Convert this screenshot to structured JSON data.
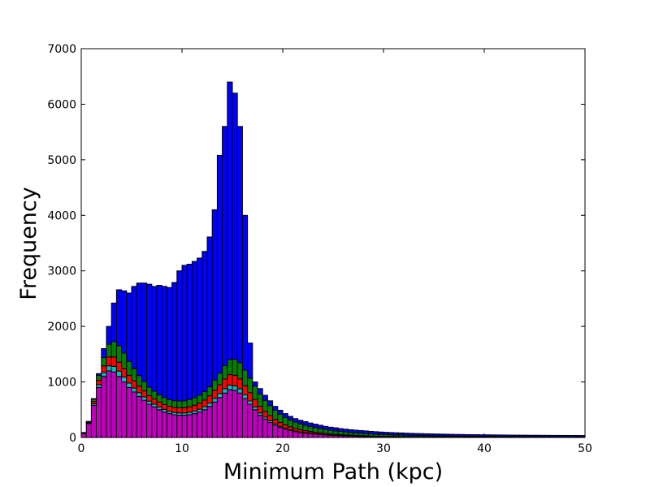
{
  "chart_data": {
    "type": "histogram",
    "xlabel": "Minimum Path (kpc)",
    "ylabel": "Frequency",
    "stacked": true,
    "bins": [
      0,
      0.5,
      1,
      1.5,
      2,
      2.5,
      3,
      3.5,
      4,
      4.5,
      5,
      5.5,
      6,
      6.5,
      7,
      7.5,
      8,
      8.5,
      9,
      9.5,
      10,
      10.5,
      11,
      11.5,
      12,
      12.5,
      13,
      13.5,
      14,
      14.5,
      15,
      15.5,
      16,
      16.5,
      17,
      17.5,
      18,
      18.5,
      19,
      19.5,
      20,
      20.5,
      21,
      21.5,
      22,
      22.5,
      23,
      23.5,
      24,
      24.5,
      25,
      25.5,
      26,
      26.5,
      27,
      27.5,
      28,
      28.5,
      29,
      29.5,
      30,
      30.5,
      31,
      31.5,
      32,
      32.5,
      33,
      33.5,
      34,
      34.5,
      35,
      35.5,
      36,
      36.5,
      37,
      37.5,
      38,
      38.5,
      39,
      39.5,
      40,
      40.5,
      41,
      41.5,
      42,
      42.5,
      43,
      43.5,
      44,
      44.5,
      45,
      45.5,
      46,
      46.5,
      47,
      47.5,
      48,
      48.5,
      49,
      49.5,
      50
    ],
    "series": [
      {
        "color": "#bf00bf",
        "values": [
          70,
          250,
          580,
          900,
          1100,
          1200,
          1180,
          1100,
          1000,
          900,
          820,
          740,
          670,
          600,
          550,
          500,
          460,
          430,
          410,
          400,
          400,
          410,
          430,
          460,
          500,
          560,
          640,
          720,
          800,
          860,
          850,
          800,
          700,
          600,
          500,
          400,
          330,
          270,
          220,
          180,
          150,
          125,
          105,
          90,
          78,
          68,
          60,
          52,
          46,
          40,
          36,
          32,
          28,
          25,
          22,
          20,
          18,
          16,
          14,
          12,
          11,
          10,
          9,
          9,
          8,
          8,
          7,
          7,
          6,
          6,
          5,
          5,
          5,
          4,
          4,
          4,
          4,
          3,
          3,
          3,
          3,
          3,
          3,
          2,
          2,
          2,
          2,
          2,
          2,
          2,
          2,
          1,
          1,
          1,
          1,
          1,
          1,
          1,
          1,
          1
        ]
      },
      {
        "color": "#00bfbf",
        "values": [
          5,
          10,
          30,
          50,
          70,
          90,
          100,
          95,
          90,
          80,
          70,
          65,
          60,
          55,
          50,
          48,
          45,
          42,
          42,
          42,
          42,
          44,
          46,
          50,
          55,
          60,
          66,
          72,
          78,
          82,
          80,
          76,
          68,
          58,
          50,
          42,
          35,
          30,
          25,
          21,
          18,
          15,
          13,
          11,
          10,
          9,
          8,
          7,
          6,
          5,
          5,
          4,
          4,
          4,
          3,
          3,
          3,
          3,
          2,
          2,
          2,
          2,
          2,
          2,
          2,
          2,
          2,
          2,
          2,
          2,
          1,
          1,
          1,
          1,
          1,
          1,
          1,
          1,
          1,
          1,
          1,
          1,
          1,
          1,
          1,
          1,
          1,
          1,
          1,
          1,
          1,
          1,
          1,
          1,
          1,
          1,
          1,
          1,
          1,
          1
        ]
      },
      {
        "color": "#ff0000",
        "values": [
          5,
          15,
          40,
          80,
          120,
          160,
          170,
          160,
          150,
          140,
          130,
          120,
          110,
          100,
          95,
          90,
          90,
          90,
          90,
          92,
          95,
          100,
          105,
          110,
          120,
          130,
          145,
          160,
          175,
          190,
          190,
          180,
          165,
          150,
          135,
          120,
          105,
          92,
          80,
          70,
          60,
          52,
          45,
          40,
          35,
          30,
          27,
          24,
          21,
          19,
          17,
          15,
          14,
          13,
          12,
          11,
          10,
          9,
          8,
          8,
          7,
          7,
          6,
          6,
          6,
          5,
          5,
          5,
          5,
          4,
          4,
          4,
          4,
          4,
          3,
          3,
          3,
          3,
          3,
          3,
          3,
          3,
          2,
          2,
          2,
          2,
          2,
          2,
          2,
          2,
          2,
          2,
          2,
          2,
          2,
          2,
          2,
          2,
          2,
          2
        ]
      },
      {
        "color": "#008000",
        "values": [
          5,
          10,
          40,
          90,
          150,
          230,
          280,
          300,
          280,
          250,
          220,
          190,
          170,
          150,
          140,
          130,
          125,
          120,
          120,
          122,
          125,
          130,
          135,
          140,
          150,
          165,
          185,
          210,
          240,
          270,
          290,
          290,
          280,
          260,
          240,
          220,
          200,
          180,
          165,
          150,
          135,
          125,
          115,
          105,
          98,
          90,
          84,
          78,
          72,
          67,
          62,
          58,
          54,
          50,
          47,
          44,
          41,
          38,
          36,
          34,
          32,
          30,
          28,
          27,
          25,
          24,
          23,
          22,
          21,
          20,
          19,
          18,
          18,
          17,
          16,
          16,
          15,
          15,
          14,
          14,
          13,
          13,
          13,
          12,
          12,
          12,
          11,
          11,
          11,
          10,
          10,
          10,
          10,
          10,
          9,
          9,
          9,
          9,
          9,
          9
        ]
      },
      {
        "color": "#0000ff",
        "values": [
          5,
          5,
          10,
          30,
          160,
          320,
          690,
          1005,
          1120,
          1230,
          1480,
          1665,
          1770,
          1855,
          1885,
          1972,
          2000,
          2018,
          2128,
          2344,
          2438,
          2436,
          2454,
          2470,
          2525,
          2695,
          3064,
          3918,
          4307,
          4998,
          4790,
          4254,
          2787,
          632,
          75,
          98,
          90,
          88,
          70,
          69,
          67,
          63,
          62,
          64,
          64,
          63,
          61,
          59,
          55,
          54,
          55,
          51,
          50,
          48,
          48,
          47,
          46,
          44,
          44,
          42,
          41,
          40,
          40,
          38,
          37,
          36,
          35,
          34,
          33,
          33,
          34,
          33,
          31,
          31,
          31,
          30,
          29,
          29,
          29,
          28,
          28,
          27,
          27,
          28,
          27,
          26,
          26,
          26,
          25,
          25,
          25,
          25,
          25,
          24,
          25,
          24,
          24,
          23,
          23,
          22
        ]
      }
    ],
    "xlim": [
      0,
      50
    ],
    "xticks": [
      0,
      10,
      20,
      30,
      40,
      50
    ],
    "ylim": [
      0,
      7000
    ],
    "yticks": [
      0,
      1000,
      2000,
      3000,
      4000,
      5000,
      6000,
      7000
    ],
    "grid": false
  }
}
